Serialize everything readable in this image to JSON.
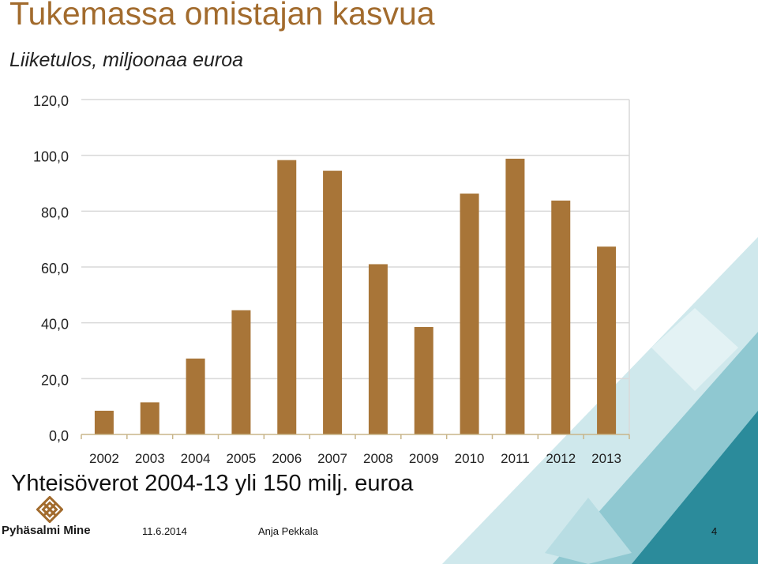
{
  "colors": {
    "title": "#a26b2d",
    "bar": "#a87538",
    "grid": "#d9d9d9",
    "axis": "#c8b58a",
    "deco_light": "#dff0f2",
    "deco_mid": "#9fd0d8",
    "deco_dark": "#2b8b9b"
  },
  "slide": {
    "title": "Tukemassa omistajan kasvua",
    "subtitle": "Liiketulos, miljoonaa euroa",
    "footnote": "Yhteisöverot 2004-13 yli 150 milj. euroa"
  },
  "footer": {
    "logo_text": "Pyhäsalmi Mine",
    "logo_icon": "diamond-knot-icon",
    "date": "11.6.2014",
    "author": "Anja Pekkala",
    "page": "4"
  },
  "chart_data": {
    "type": "bar",
    "title": "Liiketulos, miljoonaa euroa",
    "xlabel": "",
    "ylabel": "",
    "categories": [
      "2002",
      "2003",
      "2004",
      "2005",
      "2006",
      "2007",
      "2008",
      "2009",
      "2010",
      "2011",
      "2012",
      "2013"
    ],
    "values": [
      8.5,
      11.5,
      27.2,
      44.5,
      98.3,
      94.5,
      61.0,
      38.5,
      86.3,
      98.8,
      83.8,
      67.3
    ],
    "ylim": [
      0,
      120
    ],
    "yticks": [
      "0,0",
      "20,0",
      "40,0",
      "60,0",
      "80,0",
      "100,0",
      "120,0"
    ],
    "ytick_values": [
      0,
      20,
      40,
      60,
      80,
      100,
      120
    ],
    "grid": true,
    "legend": "none"
  }
}
